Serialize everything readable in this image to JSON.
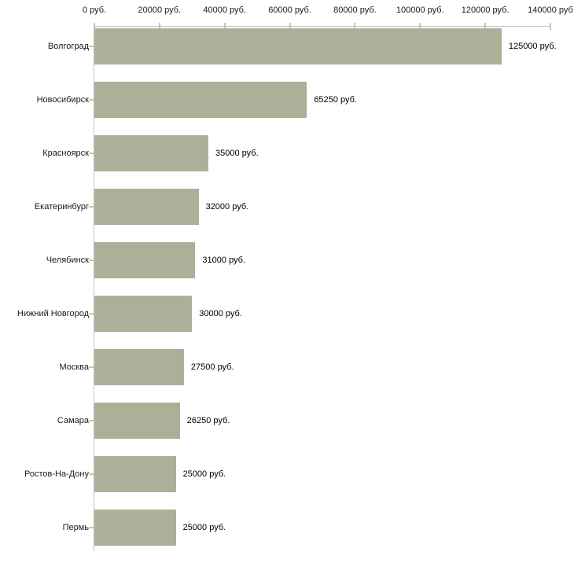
{
  "chart_data": {
    "type": "bar",
    "orientation": "horizontal",
    "title": "",
    "xlabel": "",
    "ylabel": "",
    "categories": [
      "Волгоград",
      "Новосибирск",
      "Красноярск",
      "Екатеринбург",
      "Челябинск",
      "Нижний Новгород",
      "Москва",
      "Самара",
      "Ростов-На-Дону",
      "Пермь"
    ],
    "values": [
      125000,
      65250,
      35000,
      32000,
      31000,
      30000,
      27500,
      26250,
      25000,
      25000
    ],
    "value_labels": [
      "125000 руб.",
      "65250 руб.",
      "35000 руб.",
      "32000 руб.",
      "31000 руб.",
      "30000 руб.",
      "27500 руб.",
      "26250 руб.",
      "25000 руб.",
      "25000 руб."
    ],
    "x_tick_values": [
      0,
      20000,
      40000,
      60000,
      80000,
      100000,
      120000,
      140000
    ],
    "x_tick_labels": [
      "0 руб.",
      "20000 руб.",
      "40000 руб.",
      "60000 руб.",
      "80000 руб.",
      "100000 руб.",
      "120000 руб.",
      "140000 руб"
    ],
    "xlim": [
      0,
      140000
    ],
    "legend": null,
    "grid": false,
    "colors": {
      "bar_fill": "#abb199",
      "axis_line": "#c3c3c3",
      "tick_mark": "#c9c9a0",
      "text": "#1a1a1a"
    }
  }
}
